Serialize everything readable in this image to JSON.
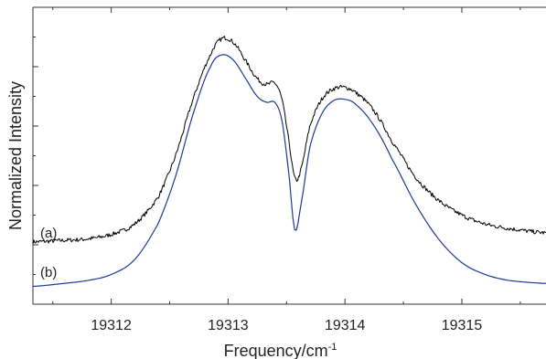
{
  "chart_data": {
    "type": "line",
    "xlabel": "Frequency/cm",
    "xlabel_superscript": "-1",
    "ylabel": "Normalized Intensity",
    "xlim": [
      19311.33,
      19315.72
    ],
    "ylim": [
      0,
      1
    ],
    "x_ticks": [
      19312,
      19313,
      19314,
      19315
    ],
    "x_tick_labels": [
      "19312",
      "19313",
      "19314",
      "19315"
    ],
    "y_tick_labels_shown": false,
    "grid": false,
    "series": [
      {
        "name": "(a)",
        "color": "#000000",
        "style": "noisy",
        "x": [
          19311.33,
          19311.6,
          19311.8,
          19312.0,
          19312.2,
          19312.4,
          19312.55,
          19312.7,
          19312.85,
          19312.95,
          19313.05,
          19313.15,
          19313.25,
          19313.33,
          19313.4,
          19313.46,
          19313.52,
          19313.57,
          19313.62,
          19313.7,
          19313.8,
          19313.9,
          19314.0,
          19314.1,
          19314.25,
          19314.4,
          19314.6,
          19314.8,
          19315.0,
          19315.2,
          19315.4,
          19315.72
        ],
        "values": [
          0.21,
          0.215,
          0.22,
          0.235,
          0.27,
          0.36,
          0.5,
          0.69,
          0.84,
          0.895,
          0.88,
          0.82,
          0.76,
          0.74,
          0.745,
          0.69,
          0.55,
          0.425,
          0.45,
          0.6,
          0.69,
          0.725,
          0.73,
          0.71,
          0.65,
          0.55,
          0.43,
          0.35,
          0.3,
          0.27,
          0.255,
          0.24
        ]
      },
      {
        "name": "(b)",
        "color": "#1a3a9a",
        "style": "smooth",
        "x": [
          19311.33,
          19311.6,
          19311.8,
          19312.0,
          19312.2,
          19312.4,
          19312.55,
          19312.7,
          19312.85,
          19312.95,
          19313.05,
          19313.15,
          19313.25,
          19313.33,
          19313.4,
          19313.46,
          19313.52,
          19313.57,
          19313.62,
          19313.7,
          19313.8,
          19313.9,
          19314.0,
          19314.1,
          19314.25,
          19314.4,
          19314.6,
          19314.8,
          19315.0,
          19315.2,
          19315.4,
          19315.72
        ],
        "values": [
          0.06,
          0.07,
          0.08,
          0.1,
          0.15,
          0.27,
          0.43,
          0.64,
          0.8,
          0.84,
          0.82,
          0.76,
          0.7,
          0.68,
          0.68,
          0.62,
          0.44,
          0.25,
          0.33,
          0.53,
          0.64,
          0.685,
          0.69,
          0.67,
          0.6,
          0.49,
          0.34,
          0.22,
          0.14,
          0.1,
          0.08,
          0.07
        ]
      }
    ],
    "annotations": [
      "(a)",
      "(b)"
    ]
  }
}
